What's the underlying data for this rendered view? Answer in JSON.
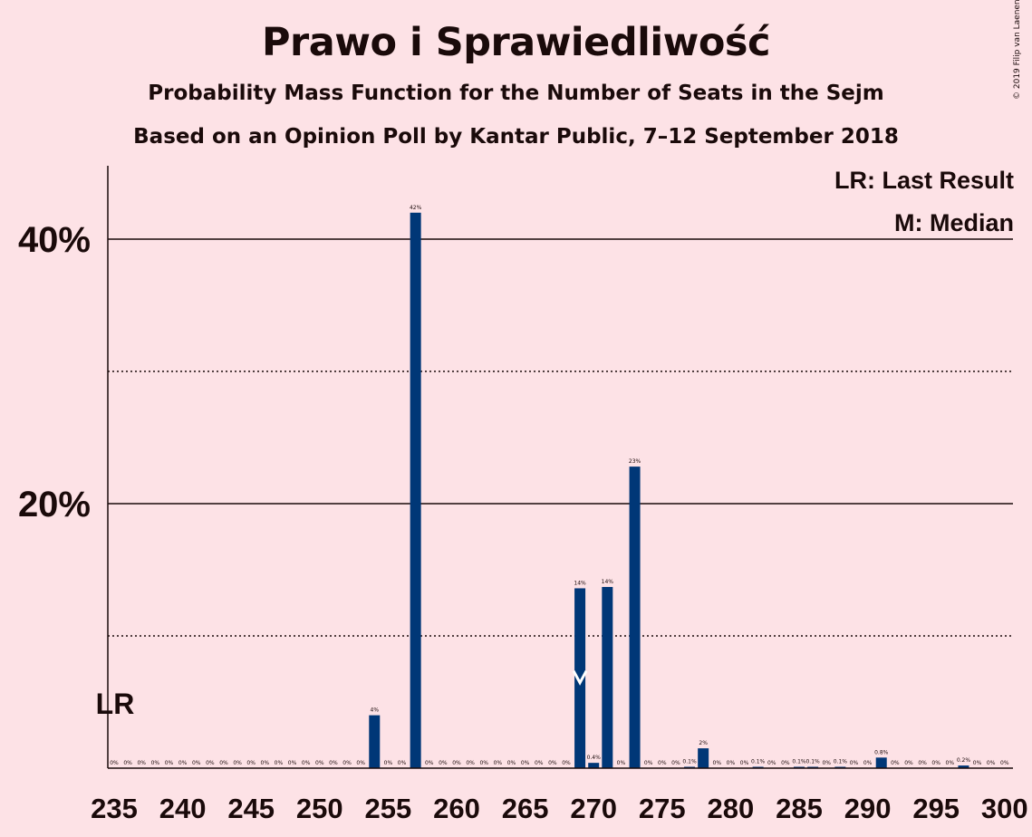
{
  "title": "Prawo i Sprawiedliwość",
  "subtitle": "Probability Mass Function for the Number of Seats in the Sejm",
  "source": "Based on an Opinion Poll by Kantar Public, 7–12 September 2018",
  "copyright": "© 2019 Filip van Laenen",
  "legend": {
    "last_result": "LR: Last Result",
    "median": "M: Median"
  },
  "markers": {
    "last_result_label": "LR",
    "last_result_seat": 235,
    "median_seat": 269
  },
  "colors": {
    "background": "#fde2e6",
    "bar": "#003777",
    "text": "#1a0a0a"
  },
  "chart_data": {
    "type": "bar",
    "xlim": [
      235,
      300
    ],
    "ylim": [
      0,
      45
    ],
    "x_ticks": [
      "235",
      "240",
      "245",
      "250",
      "255",
      "260",
      "265",
      "270",
      "275",
      "280",
      "285",
      "290",
      "295",
      "300"
    ],
    "y_ticks_major": [
      {
        "value": 20,
        "label": "20%"
      },
      {
        "value": 40,
        "label": "40%"
      }
    ],
    "y_ticks_minor": [
      10,
      30
    ],
    "grid": true,
    "legend_position": "top-right",
    "bars": [
      {
        "x": 235,
        "value": 0,
        "label": "0%"
      },
      {
        "x": 236,
        "value": 0,
        "label": "0%"
      },
      {
        "x": 237,
        "value": 0,
        "label": "0%"
      },
      {
        "x": 238,
        "value": 0,
        "label": "0%"
      },
      {
        "x": 239,
        "value": 0,
        "label": "0%"
      },
      {
        "x": 240,
        "value": 0,
        "label": "0%"
      },
      {
        "x": 241,
        "value": 0,
        "label": "0%"
      },
      {
        "x": 242,
        "value": 0,
        "label": "0%"
      },
      {
        "x": 243,
        "value": 0,
        "label": "0%"
      },
      {
        "x": 244,
        "value": 0,
        "label": "0%"
      },
      {
        "x": 245,
        "value": 0,
        "label": "0%"
      },
      {
        "x": 246,
        "value": 0,
        "label": "0%"
      },
      {
        "x": 247,
        "value": 0,
        "label": "0%"
      },
      {
        "x": 248,
        "value": 0,
        "label": "0%"
      },
      {
        "x": 249,
        "value": 0,
        "label": "0%"
      },
      {
        "x": 250,
        "value": 0,
        "label": "0%"
      },
      {
        "x": 251,
        "value": 0,
        "label": "0%"
      },
      {
        "x": 252,
        "value": 0,
        "label": "0%"
      },
      {
        "x": 253,
        "value": 0,
        "label": "0%"
      },
      {
        "x": 254,
        "value": 4,
        "label": "4%"
      },
      {
        "x": 255,
        "value": 0,
        "label": "0%"
      },
      {
        "x": 256,
        "value": 0,
        "label": "0%"
      },
      {
        "x": 257,
        "value": 42,
        "label": "42%"
      },
      {
        "x": 258,
        "value": 0,
        "label": "0%"
      },
      {
        "x": 259,
        "value": 0,
        "label": "0%"
      },
      {
        "x": 260,
        "value": 0,
        "label": "0%"
      },
      {
        "x": 261,
        "value": 0,
        "label": "0%"
      },
      {
        "x": 262,
        "value": 0,
        "label": "0%"
      },
      {
        "x": 263,
        "value": 0,
        "label": "0%"
      },
      {
        "x": 264,
        "value": 0,
        "label": "0%"
      },
      {
        "x": 265,
        "value": 0,
        "label": "0%"
      },
      {
        "x": 266,
        "value": 0,
        "label": "0%"
      },
      {
        "x": 267,
        "value": 0,
        "label": "0%"
      },
      {
        "x": 268,
        "value": 0,
        "label": "0%"
      },
      {
        "x": 269,
        "value": 13.6,
        "label": "14%"
      },
      {
        "x": 270,
        "value": 0.4,
        "label": "0.4%"
      },
      {
        "x": 271,
        "value": 13.7,
        "label": "14%"
      },
      {
        "x": 272,
        "value": 0,
        "label": "0%"
      },
      {
        "x": 273,
        "value": 22.8,
        "label": "23%"
      },
      {
        "x": 274,
        "value": 0,
        "label": "0%"
      },
      {
        "x": 275,
        "value": 0,
        "label": "0%"
      },
      {
        "x": 276,
        "value": 0,
        "label": "0%"
      },
      {
        "x": 277,
        "value": 0.1,
        "label": "0.1%"
      },
      {
        "x": 278,
        "value": 1.5,
        "label": "2%"
      },
      {
        "x": 279,
        "value": 0,
        "label": "0%"
      },
      {
        "x": 280,
        "value": 0,
        "label": "0%"
      },
      {
        "x": 281,
        "value": 0,
        "label": "0%"
      },
      {
        "x": 282,
        "value": 0.1,
        "label": "0.1%"
      },
      {
        "x": 283,
        "value": 0,
        "label": "0%"
      },
      {
        "x": 284,
        "value": 0,
        "label": "0%"
      },
      {
        "x": 285,
        "value": 0.1,
        "label": "0.1%"
      },
      {
        "x": 286,
        "value": 0.1,
        "label": "0.1%"
      },
      {
        "x": 287,
        "value": 0,
        "label": "0%"
      },
      {
        "x": 288,
        "value": 0.1,
        "label": "0.1%"
      },
      {
        "x": 289,
        "value": 0,
        "label": "0%"
      },
      {
        "x": 290,
        "value": 0,
        "label": "0%"
      },
      {
        "x": 291,
        "value": 0.8,
        "label": "0.8%"
      },
      {
        "x": 292,
        "value": 0,
        "label": "0%"
      },
      {
        "x": 293,
        "value": 0,
        "label": "0%"
      },
      {
        "x": 294,
        "value": 0,
        "label": "0%"
      },
      {
        "x": 295,
        "value": 0,
        "label": "0%"
      },
      {
        "x": 296,
        "value": 0,
        "label": "0%"
      },
      {
        "x": 297,
        "value": 0.2,
        "label": "0.2%"
      },
      {
        "x": 298,
        "value": 0,
        "label": "0%"
      },
      {
        "x": 299,
        "value": 0,
        "label": "0%"
      },
      {
        "x": 300,
        "value": 0,
        "label": "0%"
      }
    ]
  }
}
